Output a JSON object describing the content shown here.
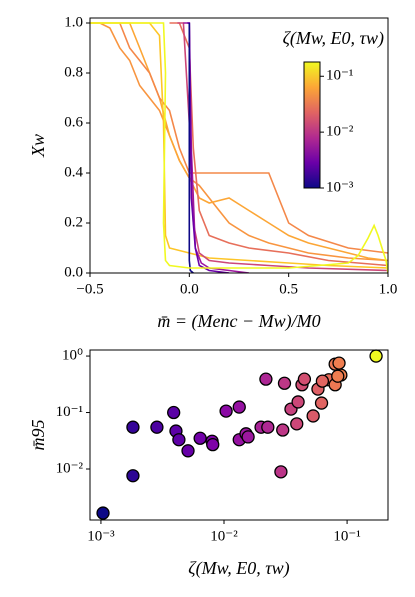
{
  "chart_data": [
    {
      "type": "line",
      "xlabel": "m̄ = (Menc − Mw)/M0",
      "ylabel": "Xw",
      "annotation": "ζ(Mw, E0, τw)",
      "xlim": [
        -0.5,
        1.0
      ],
      "ylim": [
        0.0,
        1.02
      ],
      "xticks": [
        {
          "value": -0.5,
          "label": "−0.5"
        },
        {
          "value": 0.0,
          "label": "0.0"
        },
        0.5,
        {
          "value": 1.0,
          "label": "1.0"
        }
      ],
      "yticks": [
        {
          "value": 0.0,
          "label": "0.0"
        },
        0.2,
        0.4,
        0.6,
        0.8,
        {
          "value": 1.0,
          "label": "1.0"
        }
      ],
      "series": [
        {
          "color": "#f89540",
          "x": [
            -0.5,
            -0.45,
            -0.4,
            -0.35,
            -0.3,
            -0.25,
            -0.2,
            -0.15,
            -0.1,
            -0.05,
            0,
            0.05,
            0.1,
            0.15,
            0.2,
            0.3,
            0.4,
            0.5,
            0.6,
            0.8,
            1.0
          ],
          "values": [
            1,
            1,
            0.98,
            0.9,
            0.85,
            0.75,
            0.7,
            0.65,
            0.55,
            0.45,
            0.38,
            0.35,
            0.3,
            0.25,
            0.2,
            0.15,
            0.12,
            0.1,
            0.08,
            0.06,
            0.05
          ]
        },
        {
          "color": "#fca636",
          "x": [
            -0.5,
            -0.3,
            -0.25,
            -0.2,
            -0.15,
            -0.1,
            -0.05,
            0.0,
            0.05,
            0.1,
            0.2,
            0.3,
            0.4,
            0.5,
            0.6,
            0.7,
            0.8,
            0.9,
            1.0
          ],
          "values": [
            1,
            1,
            0.9,
            0.8,
            0.7,
            0.55,
            0.45,
            0.38,
            0.3,
            0.28,
            0.3,
            0.25,
            0.2,
            0.15,
            0.12,
            0.1,
            0.08,
            0.06,
            0.05
          ]
        },
        {
          "color": "#f48849",
          "x": [
            -0.35,
            -0.3,
            -0.25,
            -0.2,
            -0.15,
            -0.1,
            -0.05,
            0,
            0.1,
            0.2,
            0.3,
            0.4,
            0.45,
            0.5,
            0.6,
            0.8,
            1.0
          ],
          "values": [
            1,
            0.9,
            0.85,
            0.8,
            0.7,
            0.65,
            0.5,
            0.4,
            0.4,
            0.4,
            0.4,
            0.4,
            0.3,
            0.2,
            0.15,
            0.1,
            0.08
          ]
        },
        {
          "color": "#fdc527",
          "x": [
            -0.5,
            -0.2,
            -0.15,
            -0.13,
            -0.12,
            -0.1,
            0,
            0.1,
            0.3,
            0.5,
            0.7,
            1.0
          ],
          "values": [
            1,
            1,
            0.95,
            0.6,
            0.15,
            0.1,
            0.08,
            0.06,
            0.05,
            0.04,
            0.03,
            0.02
          ]
        },
        {
          "color": "#e76f5a",
          "x": [
            -0.1,
            -0.05,
            0,
            0.02,
            0.05,
            0.1,
            0.2,
            0.3,
            0.5,
            0.7,
            1.0
          ],
          "values": [
            1,
            1,
            0.9,
            0.5,
            0.25,
            0.15,
            0.12,
            0.1,
            0.08,
            0.05,
            0.03
          ]
        },
        {
          "color": "#cc4778",
          "x": [
            -0.06,
            -0.03,
            0,
            0.02,
            0.05,
            0.1,
            0.2,
            0.4,
            0.6,
            1.0
          ],
          "values": [
            1,
            1,
            0.6,
            0.2,
            0.08,
            0.05,
            0.04,
            0.03,
            0.02,
            0.01
          ]
        },
        {
          "color": "#9c179e",
          "x": [
            -0.03,
            0,
            0.01,
            0.03,
            0.06,
            0.1,
            0.2,
            0.3
          ],
          "values": [
            1,
            1,
            0.5,
            0.1,
            0.04,
            0.02,
            0.01,
            0
          ]
        },
        {
          "color": "#6a00a8",
          "x": [
            -0.01,
            0,
            0.01,
            0.03,
            0.05,
            0.1,
            0.2
          ],
          "values": [
            1,
            1,
            0.3,
            0.1,
            0.03,
            0.01,
            0
          ]
        },
        {
          "color": "#0d0887",
          "x": [
            0,
            0,
            0.005,
            0.02
          ],
          "values": [
            1,
            0.05,
            0.01,
            0
          ]
        },
        {
          "color": "#f0f921",
          "x": [
            -0.5,
            -0.13,
            -0.12,
            -0.13,
            -0.12,
            -0.1,
            0.0,
            0.2,
            0.5,
            0.8,
            0.85,
            0.9,
            0.93,
            0.95,
            0.97,
            0.99,
            1.0
          ],
          "values": [
            1,
            1,
            0.8,
            0.2,
            0.05,
            0.03,
            0.02,
            0.02,
            0.02,
            0.04,
            0.07,
            0.14,
            0.19,
            0.15,
            0.1,
            0.05,
            0.0
          ]
        }
      ],
      "colorbar": {
        "log": true,
        "lim": [
          0.001,
          0.18
        ],
        "ticks": [
          {
            "value": 0.001,
            "label": "10⁻³"
          },
          {
            "value": 0.01,
            "label": "10⁻²"
          },
          {
            "value": 0.1,
            "label": "10⁻¹"
          }
        ],
        "colormap": [
          "#0d0887",
          "#6a00a8",
          "#b12a90",
          "#e16462",
          "#fca636",
          "#f0f921"
        ]
      }
    },
    {
      "type": "scatter",
      "log": true,
      "xlabel": "ζ(Mw, E0, τw)",
      "ylabel": "m̄95",
      "xlim": [
        0.000815,
        0.215
      ],
      "ylim": [
        0.00125,
        1.28
      ],
      "xticks": [
        {
          "value": 0.001,
          "label": "10⁻³"
        },
        {
          "value": 0.01,
          "label": "10⁻²"
        },
        {
          "value": 0.1,
          "label": "10⁻¹"
        }
      ],
      "yticks": [
        {
          "value": 0.01,
          "label": "10⁻²"
        },
        {
          "value": 0.1,
          "label": "10⁻¹"
        },
        {
          "value": 1,
          "label": "10⁰"
        }
      ],
      "x": [
        0.00104,
        0.00182,
        0.00182,
        0.00285,
        0.00407,
        0.0043,
        0.0039,
        0.0051,
        0.0064,
        0.008,
        0.0081,
        0.0104,
        0.0133,
        0.0151,
        0.0157,
        0.0133,
        0.02,
        0.0227,
        0.0219,
        0.03,
        0.031,
        0.029,
        0.039,
        0.035,
        0.04,
        0.043,
        0.045,
        0.053,
        0.058,
        0.062,
        0.071,
        0.063,
        0.08,
        0.089,
        0.08,
        0.086,
        0.084,
        0.172
      ],
      "y": [
        0.00166,
        0.0076,
        0.055,
        0.055,
        0.047,
        0.033,
        0.1,
        0.021,
        0.035,
        0.031,
        0.027,
        0.106,
        0.033,
        0.042,
        0.037,
        0.125,
        0.055,
        0.055,
        0.39,
        0.049,
        0.33,
        0.0089,
        0.063,
        0.115,
        0.154,
        0.31,
        0.39,
        0.087,
        0.26,
        0.147,
        0.38,
        0.36,
        0.31,
        0.46,
        0.72,
        0.75,
        0.44,
        1.0
      ],
      "colors": [
        "#0d0887",
        "#2c0594",
        "#350498",
        "#4c02a1",
        "#5c01a6",
        "#5e01a6",
        "#5a01a5",
        "#6600a7",
        "#7201a8",
        "#7e03a8",
        "#7e03a8",
        "#8b0aa5",
        "#9511a1",
        "#9a169f",
        "#9c179e",
        "#9511a1",
        "#a82296",
        "#ae2892",
        "#ac2694",
        "#bd3786",
        "#bd3786",
        "#bb3488",
        "#cc4778",
        "#c6417d",
        "#cc4778",
        "#d04d73",
        "#d24f71",
        "#da5b69",
        "#de5f65",
        "#e16462",
        "#e76e5b",
        "#e26561",
        "#ec7853",
        "#f0804e",
        "#ec7853",
        "#ef7e50",
        "#ee7d50",
        "#f0f921"
      ]
    }
  ]
}
